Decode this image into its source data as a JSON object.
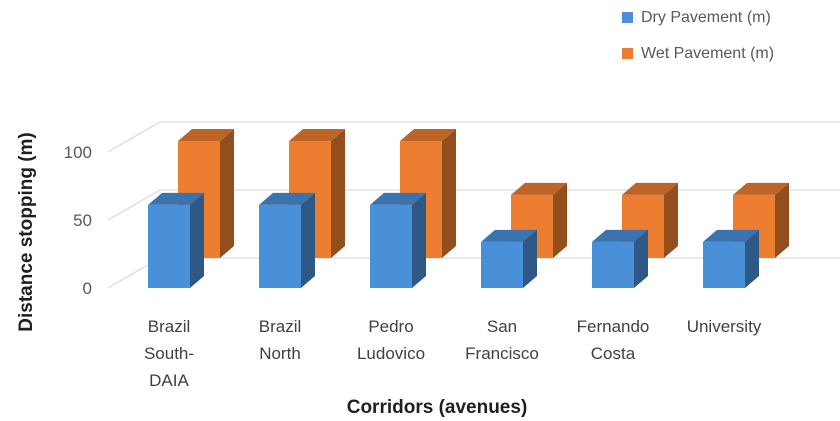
{
  "chart_data": {
    "type": "bar",
    "three_d": true,
    "categories": [
      [
        "Brazil",
        "South-",
        "DAIA"
      ],
      [
        "Brazil",
        "North"
      ],
      [
        "Pedro",
        "Ludovico"
      ],
      [
        "San",
        "Francisco"
      ],
      [
        "Fernando",
        "Costa"
      ],
      [
        "University"
      ]
    ],
    "series": [
      {
        "name": "Dry Pavement (m)",
        "color": "#4a90d9",
        "values": [
          63,
          63,
          63,
          35,
          35,
          35
        ]
      },
      {
        "name": "Wet Pavement (m)",
        "color": "#ed7d31",
        "values": [
          100,
          100,
          100,
          54,
          54,
          54
        ]
      }
    ],
    "xlabel": "Corridors (avenues)",
    "ylabel": "Distance stopping (m)",
    "yticks": [
      0,
      50,
      100
    ],
    "ylim": [
      0,
      130
    ],
    "grid": true,
    "legend_position": "top-right"
  }
}
